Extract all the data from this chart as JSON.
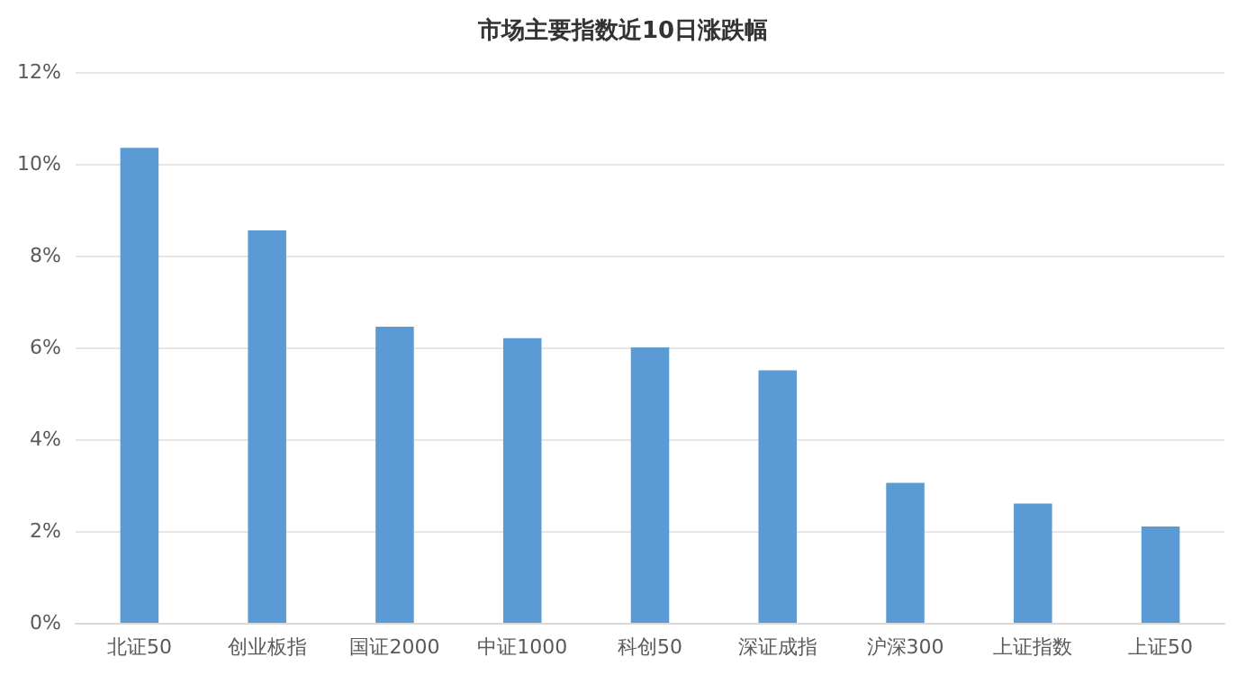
{
  "chart_data": {
    "type": "bar",
    "title": "市场主要指数近10日涨跌幅",
    "categories": [
      "北证50",
      "创业板指",
      "国证2000",
      "中证1000",
      "科创50",
      "深证成指",
      "沪深300",
      "上证指数",
      "上证50"
    ],
    "values": [
      10.35,
      8.55,
      6.45,
      6.2,
      6.0,
      5.5,
      3.05,
      2.6,
      2.1
    ],
    "color": "#5b9bd5",
    "ylim": [
      0,
      12
    ],
    "yticks": [
      {
        "value": 0,
        "label": "0%"
      },
      {
        "value": 2,
        "label": "2%"
      },
      {
        "value": 4,
        "label": "4%"
      },
      {
        "value": 6,
        "label": "6%"
      },
      {
        "value": 8,
        "label": "8%"
      },
      {
        "value": 10,
        "label": "10%"
      },
      {
        "value": 12,
        "label": "12%"
      }
    ],
    "grid": "y"
  }
}
